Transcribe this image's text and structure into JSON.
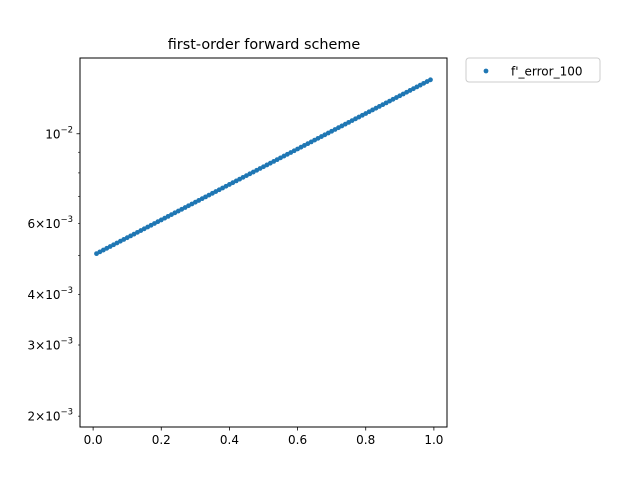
{
  "chart_data": {
    "type": "scatter",
    "title": "first-order forward scheme",
    "xlabel": "",
    "ylabel": "",
    "yscale": "log",
    "xlim": [
      -0.0385,
      1.0385
    ],
    "ylim": [
      0.00188,
      0.0154
    ],
    "grid": false,
    "legend_position": "outside-upper-right",
    "x_ticks": [
      {
        "value": 0.0,
        "label": "0.0"
      },
      {
        "value": 0.2,
        "label": "0.2"
      },
      {
        "value": 0.4,
        "label": "0.4"
      },
      {
        "value": 0.6,
        "label": "0.6"
      },
      {
        "value": 0.8,
        "label": "0.8"
      },
      {
        "value": 1.0,
        "label": "1.0"
      }
    ],
    "y_major_ticks": [
      {
        "value": 0.01,
        "base": "10",
        "exp": "−2"
      }
    ],
    "y_minor_ticks": [
      {
        "value": 0.002,
        "mant": "2",
        "base": "10",
        "exp": "−3"
      },
      {
        "value": 0.003,
        "mant": "3",
        "base": "10",
        "exp": "−3"
      },
      {
        "value": 0.004,
        "mant": "4",
        "base": "10",
        "exp": "−3"
      },
      {
        "value": 0.005,
        "mant": "",
        "base": "",
        "exp": ""
      },
      {
        "value": 0.006,
        "mant": "6",
        "base": "10",
        "exp": "−3"
      },
      {
        "value": 0.007,
        "mant": "",
        "base": "",
        "exp": ""
      },
      {
        "value": 0.008,
        "mant": "",
        "base": "",
        "exp": ""
      },
      {
        "value": 0.009,
        "mant": "",
        "base": "",
        "exp": ""
      }
    ],
    "series": [
      {
        "name": "f'_error_100",
        "color": "#1f77b4",
        "marker": "dot",
        "x_start": 0.01,
        "x_end": 0.99,
        "x_step": 0.01,
        "y_start": 0.00505,
        "y_end": 0.0136
      }
    ]
  }
}
